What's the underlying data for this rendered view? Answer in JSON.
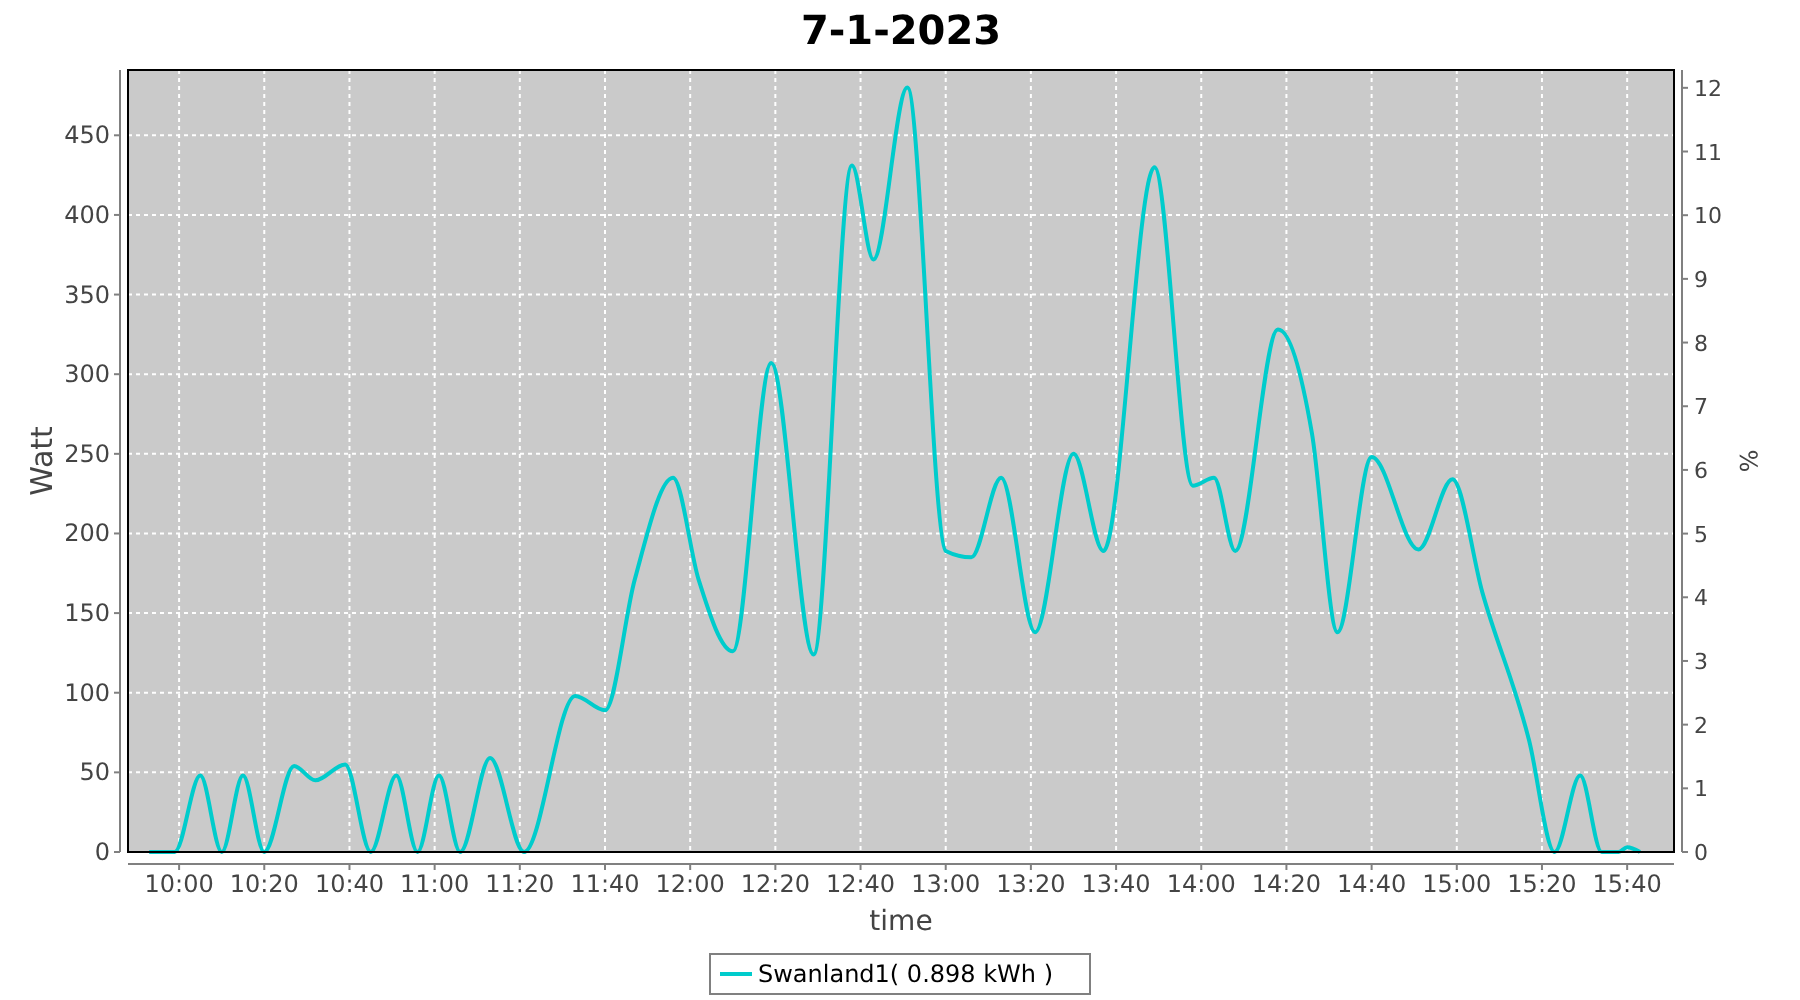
{
  "chart_data": {
    "type": "line",
    "title": "7-1-2023",
    "xlabel": "time",
    "ylabel": "Watt",
    "y2label": "%",
    "xlim": [
      9.8,
      15.85
    ],
    "xticks": [
      {
        "value": 10,
        "label": "10:00"
      },
      {
        "value": 10.3333,
        "label": "10:20"
      },
      {
        "value": 10.6667,
        "label": "10:40"
      },
      {
        "value": 11,
        "label": "11:00"
      },
      {
        "value": 11.3333,
        "label": "11:20"
      },
      {
        "value": 11.6667,
        "label": "11:40"
      },
      {
        "value": 12,
        "label": "12:00"
      },
      {
        "value": 12.3333,
        "label": "12:20"
      },
      {
        "value": 12.6667,
        "label": "12:40"
      },
      {
        "value": 13,
        "label": "13:00"
      },
      {
        "value": 13.3333,
        "label": "13:20"
      },
      {
        "value": 13.6667,
        "label": "13:40"
      },
      {
        "value": 14,
        "label": "14:00"
      },
      {
        "value": 14.3333,
        "label": "14:20"
      },
      {
        "value": 14.6667,
        "label": "14:40"
      },
      {
        "value": 15,
        "label": "15:00"
      },
      {
        "value": 15.3333,
        "label": "15:20"
      },
      {
        "value": 15.6667,
        "label": "15:40"
      }
    ],
    "ylim": [
      0,
      491
    ],
    "yticks": [
      0,
      50,
      100,
      150,
      200,
      250,
      300,
      350,
      400,
      450
    ],
    "y2lim": [
      0,
      12.28
    ],
    "y2ticks": [
      0,
      1,
      2,
      3,
      4,
      5,
      6,
      7,
      8,
      9,
      10,
      11,
      12
    ],
    "grid": true,
    "legend": "bottom",
    "series": [
      {
        "name": "Swanland1( 0.898 kWh )",
        "color": "#00cccc",
        "x": [
          9.883,
          9.983,
          10.083,
          10.167,
          10.25,
          10.333,
          10.45,
          10.533,
          10.65,
          10.75,
          10.85,
          10.933,
          11.017,
          11.1,
          11.217,
          11.35,
          11.55,
          11.667,
          11.783,
          11.933,
          12.033,
          12.167,
          12.317,
          12.483,
          12.633,
          12.717,
          12.85,
          13.0,
          13.1,
          13.217,
          13.35,
          13.5,
          13.617,
          13.817,
          13.967,
          14.05,
          14.133,
          14.3,
          14.433,
          14.533,
          14.667,
          14.85,
          14.983,
          15.1,
          15.283,
          15.383,
          15.483,
          15.567,
          15.633,
          15.667,
          15.717
        ],
        "values": [
          0,
          0,
          48,
          0,
          48,
          0,
          54,
          45,
          55,
          0,
          48,
          0,
          48,
          0,
          59,
          0,
          98,
          89,
          171,
          235,
          171,
          126,
          307,
          124,
          431,
          372,
          480,
          189,
          185,
          235,
          138,
          250,
          189,
          430,
          230,
          235,
          189,
          328,
          263,
          138,
          248,
          190,
          234,
          163,
          70,
          0,
          48,
          0,
          0,
          3,
          0
        ]
      }
    ]
  }
}
